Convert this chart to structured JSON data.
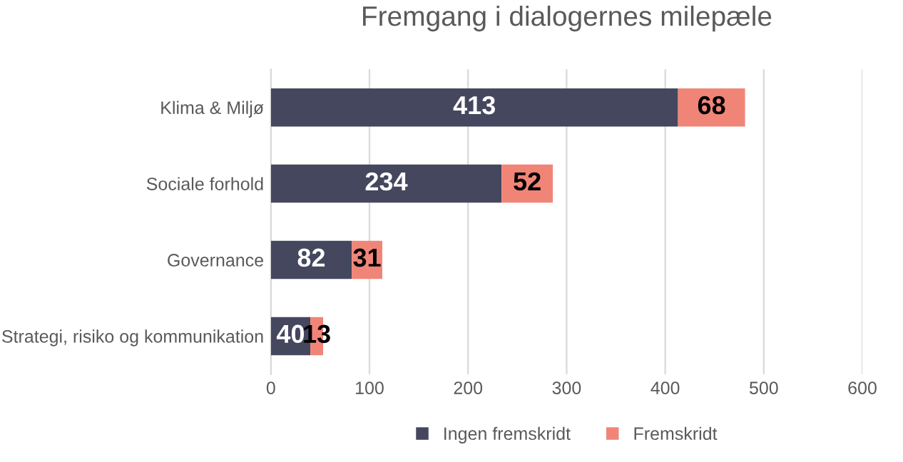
{
  "chart_data": {
    "type": "bar",
    "orientation": "horizontal",
    "stacked": true,
    "title": "Fremgang i dialogernes milepæle",
    "categories": [
      "Klima & Miljø",
      "Sociale forhold",
      "Governance",
      "Strategi, risiko og kommunikation"
    ],
    "series": [
      {
        "name": "Ingen fremskridt",
        "color": "#44475e",
        "values": [
          413,
          234,
          82,
          40
        ]
      },
      {
        "name": "Fremskridt",
        "color": "#f08577",
        "values": [
          68,
          52,
          31,
          13
        ]
      }
    ],
    "xlim": [
      0,
      600
    ],
    "xticks": [
      0,
      100,
      200,
      300,
      400,
      500,
      600
    ],
    "grid": "x",
    "legend": "bottom",
    "data_labels": true
  }
}
